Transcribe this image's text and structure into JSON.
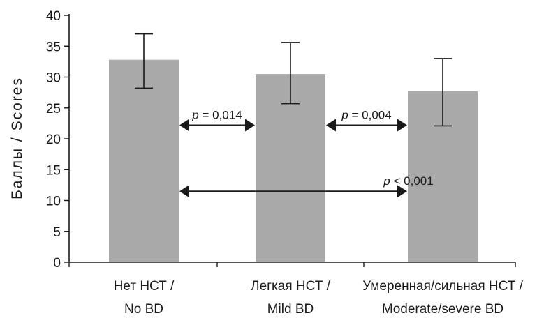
{
  "chart_data": {
    "type": "bar",
    "title": "",
    "xlabel": "",
    "ylabel": "Баллы / Scores",
    "ylim": [
      0,
      40
    ],
    "yticks": [
      0,
      5,
      10,
      15,
      20,
      25,
      30,
      35,
      40
    ],
    "grid": false,
    "categories": [
      {
        "line1": "Нет НСТ /",
        "line2": "No BD"
      },
      {
        "line1": "Легкая НСТ /",
        "line2": "Mild BD"
      },
      {
        "line1": "Умеренная/сильная НСТ /",
        "line2": "Moderate/severe BD"
      }
    ],
    "values": [
      32.8,
      30.5,
      27.7
    ],
    "error_low": [
      28.2,
      25.7,
      22.1
    ],
    "error_high": [
      37.0,
      35.6,
      33.0
    ],
    "bar_color": "#a9a9a9",
    "comparisons": [
      {
        "from": 0,
        "to": 1,
        "y": 22.2,
        "p": "p",
        "text": " = 0,014"
      },
      {
        "from": 1,
        "to": 2,
        "y": 22.2,
        "p": "p",
        "text": " = 0,004"
      },
      {
        "from": 0,
        "to": 2,
        "y": 11.5,
        "p": "p",
        "text": " < 0,001"
      }
    ]
  }
}
